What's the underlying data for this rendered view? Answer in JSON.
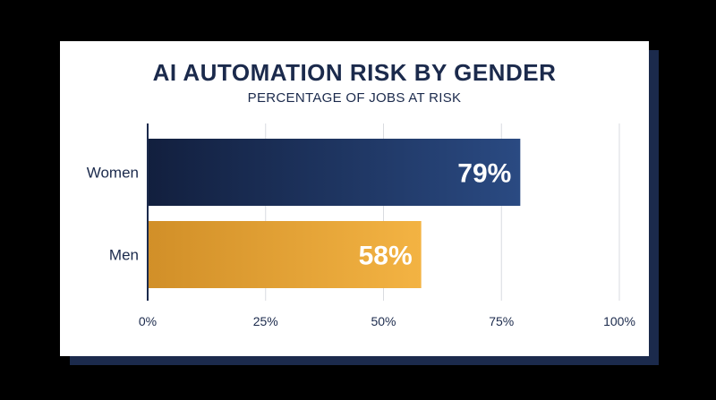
{
  "colors": {
    "background": "#000000",
    "card": "#ffffff",
    "card_shadow": "#1b2a4c",
    "text": "#1b2a4c",
    "grid": "#d9dbe0",
    "axis": "#1b2a4c"
  },
  "chart_data": {
    "type": "bar",
    "orientation": "horizontal",
    "title": "AI AUTOMATION RISK BY GENDER",
    "subtitle": "PERCENTAGE OF JOBS AT RISK",
    "categories": [
      "Women",
      "Men"
    ],
    "values": [
      79,
      58
    ],
    "data_labels": [
      "79%",
      "58%"
    ],
    "bar_colors": [
      {
        "from": "#121f3e",
        "to": "#2a4a82"
      },
      {
        "from": "#d18f28",
        "to": "#f3b343"
      }
    ],
    "xlim": [
      0,
      100
    ],
    "xticks": [
      0,
      25,
      50,
      75,
      100
    ],
    "xtick_labels": [
      "0%",
      "25%",
      "50%",
      "75%",
      "100%"
    ],
    "grid": true,
    "legend": "none"
  }
}
